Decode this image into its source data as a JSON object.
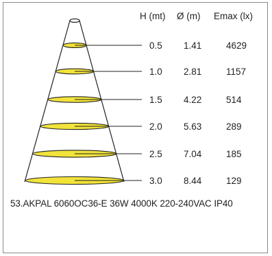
{
  "headers": {
    "height": "H (mt)",
    "diameter": "Ø (m)",
    "emax": "Emax (lx)"
  },
  "rows": [
    {
      "h": "0.5",
      "d": "1.41",
      "e": "4629"
    },
    {
      "h": "1.0",
      "d": "2.81",
      "e": "1157"
    },
    {
      "h": "1.5",
      "d": "4.22",
      "e": "514"
    },
    {
      "h": "2.0",
      "d": "5.63",
      "e": "289"
    },
    {
      "h": "2.5",
      "d": "7.04",
      "e": "185"
    },
    {
      "h": "3.0",
      "d": "8.44",
      "e": "129"
    }
  ],
  "caption": "53.AKPAL 6060OC36-E 36W 4000K 220-240VAC IP40",
  "colors": {
    "ellipse_fill": "#f2e33a",
    "outline": "#222222",
    "frame": "#8a8a8a"
  }
}
